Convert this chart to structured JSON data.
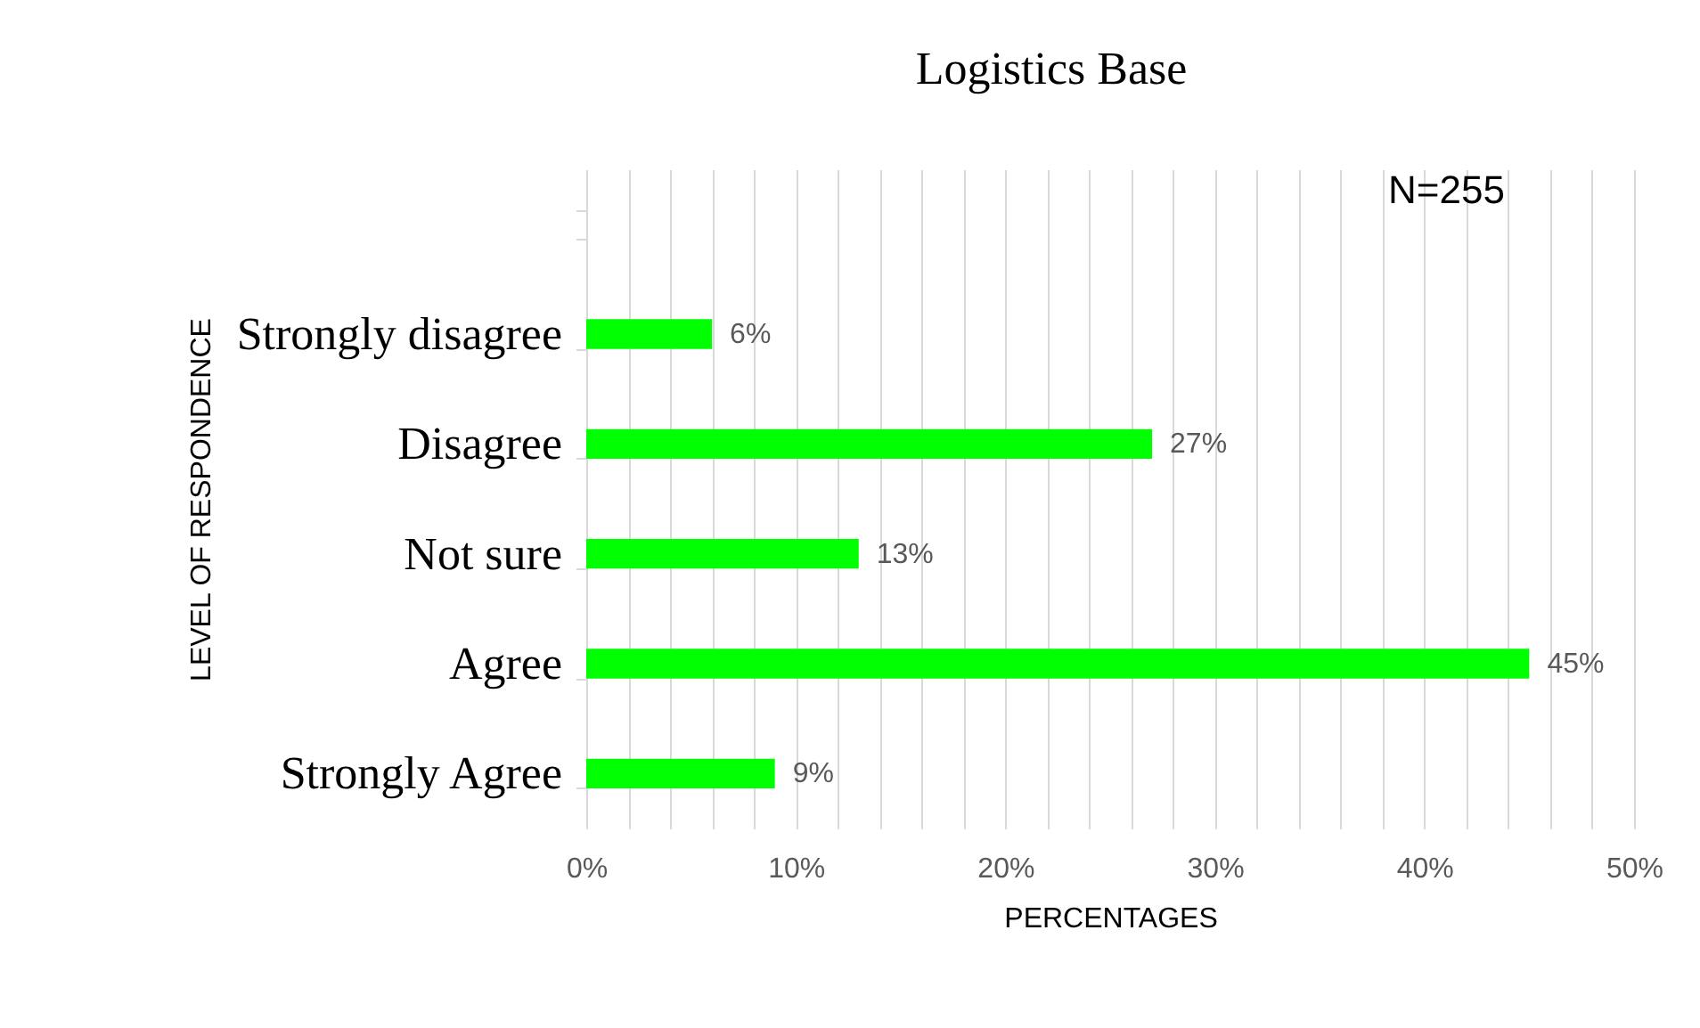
{
  "chart_data": {
    "type": "bar",
    "orientation": "horizontal",
    "title": "Logistics Base",
    "xlabel": "PERCENTAGES",
    "ylabel": "LEVEL OF RESPONDENCE",
    "categories": [
      null,
      "Strongly disagree",
      "Disagree",
      "Not sure",
      "Agree",
      "Strongly Agree"
    ],
    "values": [
      null,
      6,
      27,
      13,
      45,
      9
    ],
    "value_labels": [
      null,
      "6%",
      "27%",
      "13%",
      "45%",
      "9%"
    ],
    "color": "#00ff00",
    "xlim": [
      0,
      50
    ],
    "xticks": [
      {
        "value": 0,
        "label": "0%"
      },
      {
        "value": 2,
        "label": null
      },
      {
        "value": 4,
        "label": null
      },
      {
        "value": 6,
        "label": null
      },
      {
        "value": 8,
        "label": null
      },
      {
        "value": 10,
        "label": "10%"
      },
      {
        "value": 12,
        "label": null
      },
      {
        "value": 14,
        "label": null
      },
      {
        "value": 16,
        "label": null
      },
      {
        "value": 18,
        "label": null
      },
      {
        "value": 20,
        "label": "20%"
      },
      {
        "value": 22,
        "label": null
      },
      {
        "value": 24,
        "label": null
      },
      {
        "value": 26,
        "label": null
      },
      {
        "value": 28,
        "label": null
      },
      {
        "value": 30,
        "label": "30%"
      },
      {
        "value": 32,
        "label": null
      },
      {
        "value": 34,
        "label": null
      },
      {
        "value": 36,
        "label": null
      },
      {
        "value": 38,
        "label": null
      },
      {
        "value": 40,
        "label": "40%"
      },
      {
        "value": 42,
        "label": null
      },
      {
        "value": 44,
        "label": null
      },
      {
        "value": 46,
        "label": null
      },
      {
        "value": 48,
        "label": null
      },
      {
        "value": 50,
        "label": "50%"
      }
    ],
    "grid": "x",
    "annotations": [
      "N=255"
    ]
  }
}
